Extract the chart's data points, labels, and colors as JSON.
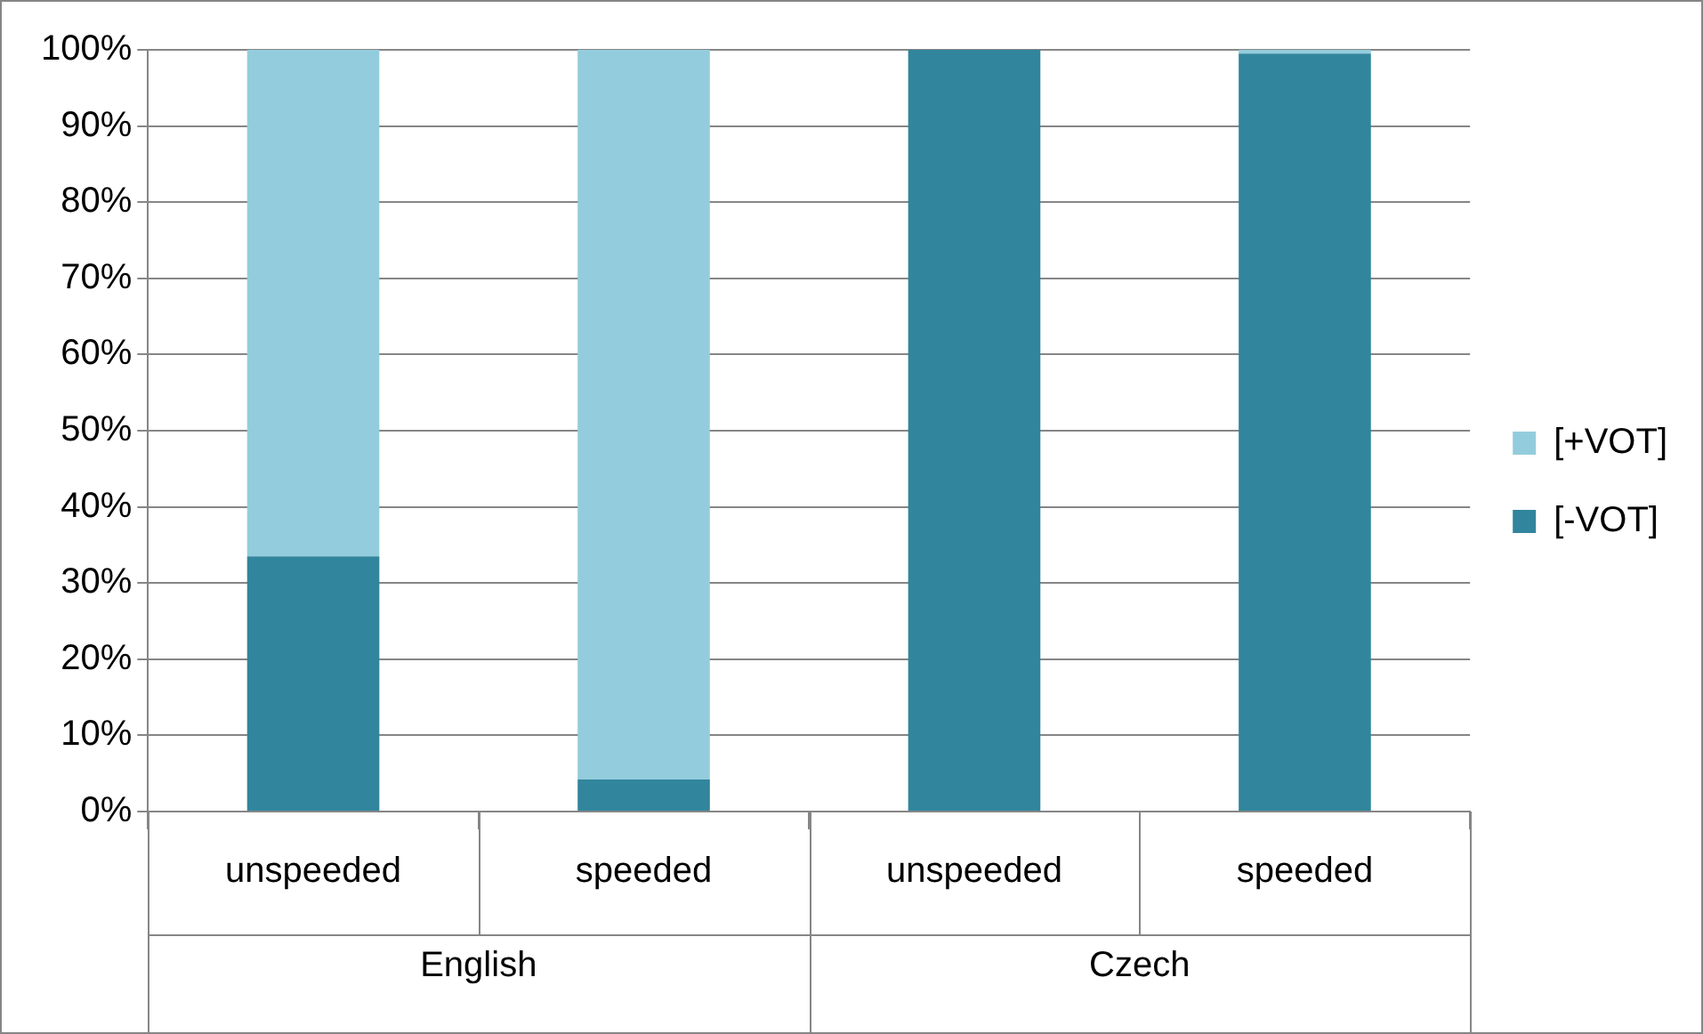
{
  "chart_data": {
    "type": "bar",
    "stacked": true,
    "categories": [
      "unspeeded",
      "speeded",
      "unspeeded",
      "speeded"
    ],
    "series": [
      {
        "name": "[-VOT]",
        "color": "#31859c",
        "values": [
          33.5,
          4.2,
          100,
          99.5
        ]
      },
      {
        "name": "[+VOT]",
        "color": "#93cddd",
        "values": [
          66.5,
          95.8,
          0,
          0.5
        ]
      }
    ],
    "annotations": [
      "English",
      "Czech"
    ],
    "ylim": [
      0,
      100
    ],
    "yticks": [
      {
        "value": 0,
        "label": "0%"
      },
      {
        "value": 10,
        "label": "10%"
      },
      {
        "value": 20,
        "label": "20%"
      },
      {
        "value": 30,
        "label": "30%"
      },
      {
        "value": 40,
        "label": "40%"
      },
      {
        "value": 50,
        "label": "50%"
      },
      {
        "value": 60,
        "label": "60%"
      },
      {
        "value": 70,
        "label": "70%"
      },
      {
        "value": 80,
        "label": "80%"
      },
      {
        "value": 90,
        "label": "90%"
      },
      {
        "value": 100,
        "label": "100%"
      }
    ],
    "grid": "y",
    "legend": "right"
  }
}
